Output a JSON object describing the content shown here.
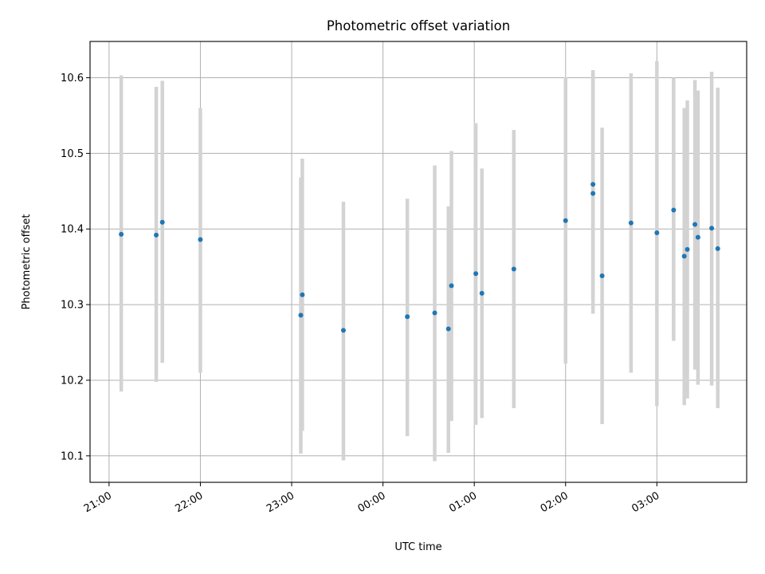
{
  "chart_data": {
    "type": "scatter",
    "title": "Photometric offset variation",
    "xlabel": "UTC time",
    "ylabel": "Photometric offset",
    "x_tick_labels": [
      "21:00",
      "22:00",
      "23:00",
      "00:00",
      "01:00",
      "02:00",
      "03:00"
    ],
    "x_ticks_minutes_since_21": [
      0,
      60,
      120,
      180,
      240,
      300,
      360
    ],
    "xlim_minutes_since_21": [
      -12.5,
      419
    ],
    "y_ticks": [
      10.1,
      10.2,
      10.3,
      10.4,
      10.5,
      10.6
    ],
    "ylim": [
      10.065,
      10.648
    ],
    "grid": true,
    "point_color": "#1f77b4",
    "errorbar_color": "#d3d3d3",
    "points": [
      {
        "t": "21:08",
        "y": 10.393,
        "lo": 10.185,
        "hi": 10.603
      },
      {
        "t": "21:31",
        "y": 10.392,
        "lo": 10.198,
        "hi": 10.588
      },
      {
        "t": "21:35",
        "y": 10.409,
        "lo": 10.223,
        "hi": 10.596
      },
      {
        "t": "22:00",
        "y": 10.386,
        "lo": 10.21,
        "hi": 10.56
      },
      {
        "t": "23:06",
        "y": 10.286,
        "lo": 10.103,
        "hi": 10.468
      },
      {
        "t": "23:07",
        "y": 10.313,
        "lo": 10.133,
        "hi": 10.493
      },
      {
        "t": "23:34",
        "y": 10.266,
        "lo": 10.094,
        "hi": 10.436
      },
      {
        "t": "00:16",
        "y": 10.284,
        "lo": 10.126,
        "hi": 10.44
      },
      {
        "t": "00:34",
        "y": 10.289,
        "lo": 10.093,
        "hi": 10.484
      },
      {
        "t": "00:43",
        "y": 10.268,
        "lo": 10.104,
        "hi": 10.43
      },
      {
        "t": "00:45",
        "y": 10.325,
        "lo": 10.146,
        "hi": 10.503
      },
      {
        "t": "01:01",
        "y": 10.341,
        "lo": 10.141,
        "hi": 10.54
      },
      {
        "t": "01:05",
        "y": 10.315,
        "lo": 10.15,
        "hi": 10.48
      },
      {
        "t": "01:26",
        "y": 10.347,
        "lo": 10.163,
        "hi": 10.531
      },
      {
        "t": "02:00",
        "y": 10.411,
        "lo": 10.222,
        "hi": 10.601
      },
      {
        "t": "02:18",
        "y": 10.459,
        "lo": 10.308,
        "hi": 10.61
      },
      {
        "t": "02:18",
        "y": 10.447,
        "lo": 10.288,
        "hi": 10.606
      },
      {
        "t": "02:24",
        "y": 10.338,
        "lo": 10.142,
        "hi": 10.534
      },
      {
        "t": "02:43",
        "y": 10.408,
        "lo": 10.21,
        "hi": 10.606
      },
      {
        "t": "03:00",
        "y": 10.395,
        "lo": 10.166,
        "hi": 10.622
      },
      {
        "t": "03:11",
        "y": 10.425,
        "lo": 10.252,
        "hi": 10.6
      },
      {
        "t": "03:18",
        "y": 10.364,
        "lo": 10.167,
        "hi": 10.56
      },
      {
        "t": "03:20",
        "y": 10.373,
        "lo": 10.176,
        "hi": 10.57
      },
      {
        "t": "03:25",
        "y": 10.406,
        "lo": 10.214,
        "hi": 10.597
      },
      {
        "t": "03:27",
        "y": 10.389,
        "lo": 10.194,
        "hi": 10.583
      },
      {
        "t": "03:36",
        "y": 10.401,
        "lo": 10.193,
        "hi": 10.608
      },
      {
        "t": "03:40",
        "y": 10.374,
        "lo": 10.163,
        "hi": 10.587
      }
    ]
  }
}
